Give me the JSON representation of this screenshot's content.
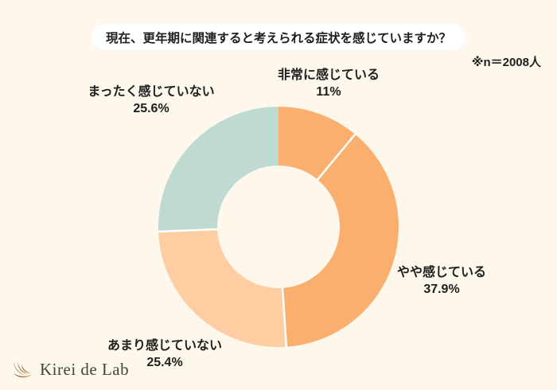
{
  "title": "現在、更年期に関連すると考えられる症状を感じていますか？",
  "note": "※n＝2008人",
  "chart_data": {
    "type": "pie",
    "subtype": "donut",
    "title": "現在、更年期に関連すると考えられる症状を感じていますか？",
    "sample_note": "※n＝2008人",
    "start_angle_deg": 0,
    "direction": "clockwise",
    "categories": [
      "非常に感じている",
      "やや感じている",
      "あまり感じていない",
      "まったく感じていない"
    ],
    "values": [
      11,
      37.9,
      25.4,
      25.6
    ],
    "value_labels": [
      "11%",
      "37.9%",
      "25.4%",
      "25.6%"
    ],
    "colors": [
      "#FAAF6E",
      "#FAAF6E",
      "#FECDA1",
      "#BFDAD3"
    ],
    "divider_color": "#FFFFFF",
    "hole_color": "#FDF8EB",
    "legend_position": "labels-around-donut"
  },
  "logo": {
    "text": "Kirei de Lab",
    "icon": "lash-swoosh-icon",
    "icon_color_dark": "#6E4B28",
    "icon_color_light": "#C99F5E"
  },
  "theme": {
    "background": "#FDF8EB",
    "title_box_bg": "#FFFFFF",
    "text_color": "#1E1E1E"
  }
}
